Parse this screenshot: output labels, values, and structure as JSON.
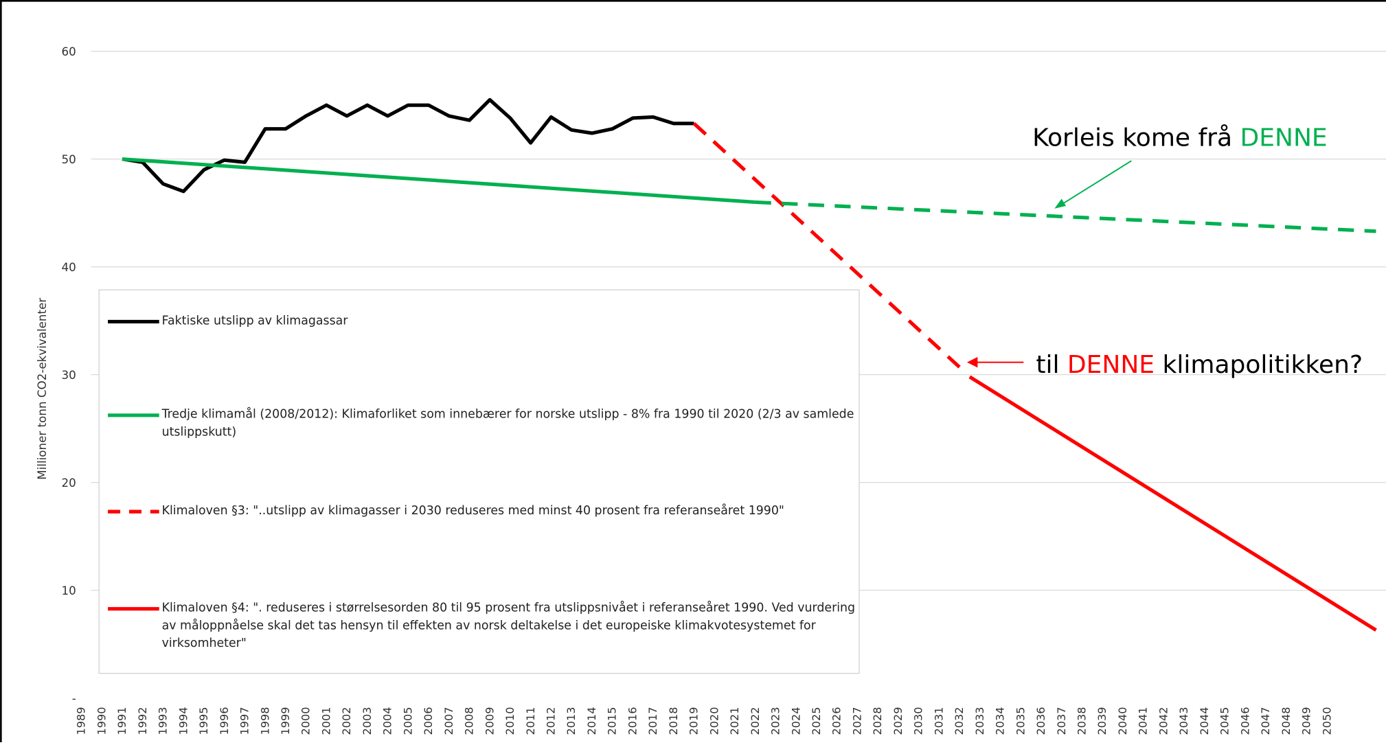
{
  "chart_data": {
    "type": "line",
    "y_axis_label": "Millioner tonn CO2-ekvivalenter",
    "x": [
      1989,
      1990,
      1991,
      1992,
      1993,
      1994,
      1995,
      1996,
      1997,
      1998,
      1999,
      2000,
      2001,
      2002,
      2003,
      2004,
      2005,
      2006,
      2007,
      2008,
      2009,
      2010,
      2011,
      2012,
      2013,
      2014,
      2015,
      2016,
      2017,
      2018,
      2019,
      2020,
      2021,
      2022,
      2023,
      2024,
      2025,
      2026,
      2027,
      2028,
      2029,
      2030,
      2031,
      2032,
      2033,
      2034,
      2035,
      2036,
      2037,
      2038,
      2039,
      2040,
      2041,
      2042,
      2043,
      2044,
      2045,
      2046,
      2047,
      2048,
      2049,
      2050
    ],
    "xlim": [
      1988.5,
      2052.8
    ],
    "ylim": [
      0,
      60
    ],
    "yticks": [
      {
        "value": 0,
        "label": "-"
      },
      10,
      20,
      30,
      40,
      50,
      60
    ],
    "grid": true,
    "series": [
      {
        "name": "Faktiske utslipp av klimagassar",
        "color": "#000000",
        "dashed": false,
        "x": [
          1991,
          1992,
          1993,
          1994,
          1995,
          1996,
          1997,
          1998,
          1999,
          2000,
          2001,
          2002,
          2003,
          2004,
          2005,
          2006,
          2007,
          2008,
          2009,
          2010,
          2011,
          2012,
          2013,
          2014,
          2015,
          2016,
          2017,
          2018,
          2019
        ],
        "values": [
          50.0,
          49.7,
          47.7,
          47.0,
          49.0,
          49.9,
          49.7,
          52.8,
          52.8,
          54.0,
          55.0,
          54.0,
          55.0,
          54.0,
          55.0,
          55.0,
          54.0,
          53.6,
          55.5,
          53.8,
          51.5,
          53.9,
          52.7,
          52.4,
          52.8,
          53.8,
          53.9,
          53.3,
          53.3
        ]
      },
      {
        "name": " Tredje klimamål (2008/2012): Klimaforliket som innebærer for norske utslipp - 8% fra 1990 til 2020 (2/3 av samlede utslippskutt)",
        "color": "#00b050",
        "dashed": false,
        "x": [
          1991,
          2022
        ],
        "values": [
          50.0,
          46.0
        ]
      },
      {
        "name": "Klimaloven §3: \"..utslipp av klimagasser i 2030 reduseres med minst 40 prosent fra referanseåret 1990\"",
        "color": "#ff0000",
        "dashed": true,
        "x": [
          2019,
          2032
        ],
        "values": [
          53.3,
          30.7
        ]
      },
      {
        "name": "Klimaloven §4: \". reduseres i størrelsesorden 80 til 95 prosent fra utslippsnivået i referanseåret 1990. Ved vurdering av måloppnåelse skal det tas hensyn til effekten av norsk deltakelse i det europeiske klimakvotesystemet for virksomheter\"",
        "color": "#ff0000",
        "dashed": false,
        "x": [
          2032.5,
          2052.4
        ],
        "values": [
          29.8,
          6.3
        ]
      },
      {
        "name": null,
        "color": "#00b050",
        "dashed": true,
        "x": [
          2022,
          2052.4
        ],
        "values": [
          46.0,
          43.3
        ]
      }
    ],
    "annotations": [
      {
        "prefix": "Korleis kome frå ",
        "highlight": "DENNE",
        "color": "#00b050"
      },
      {
        "prefix": "til ",
        "highlight": "DENNE",
        "suffix": " klimapolitikken?",
        "color": "#ff0000"
      }
    ]
  }
}
